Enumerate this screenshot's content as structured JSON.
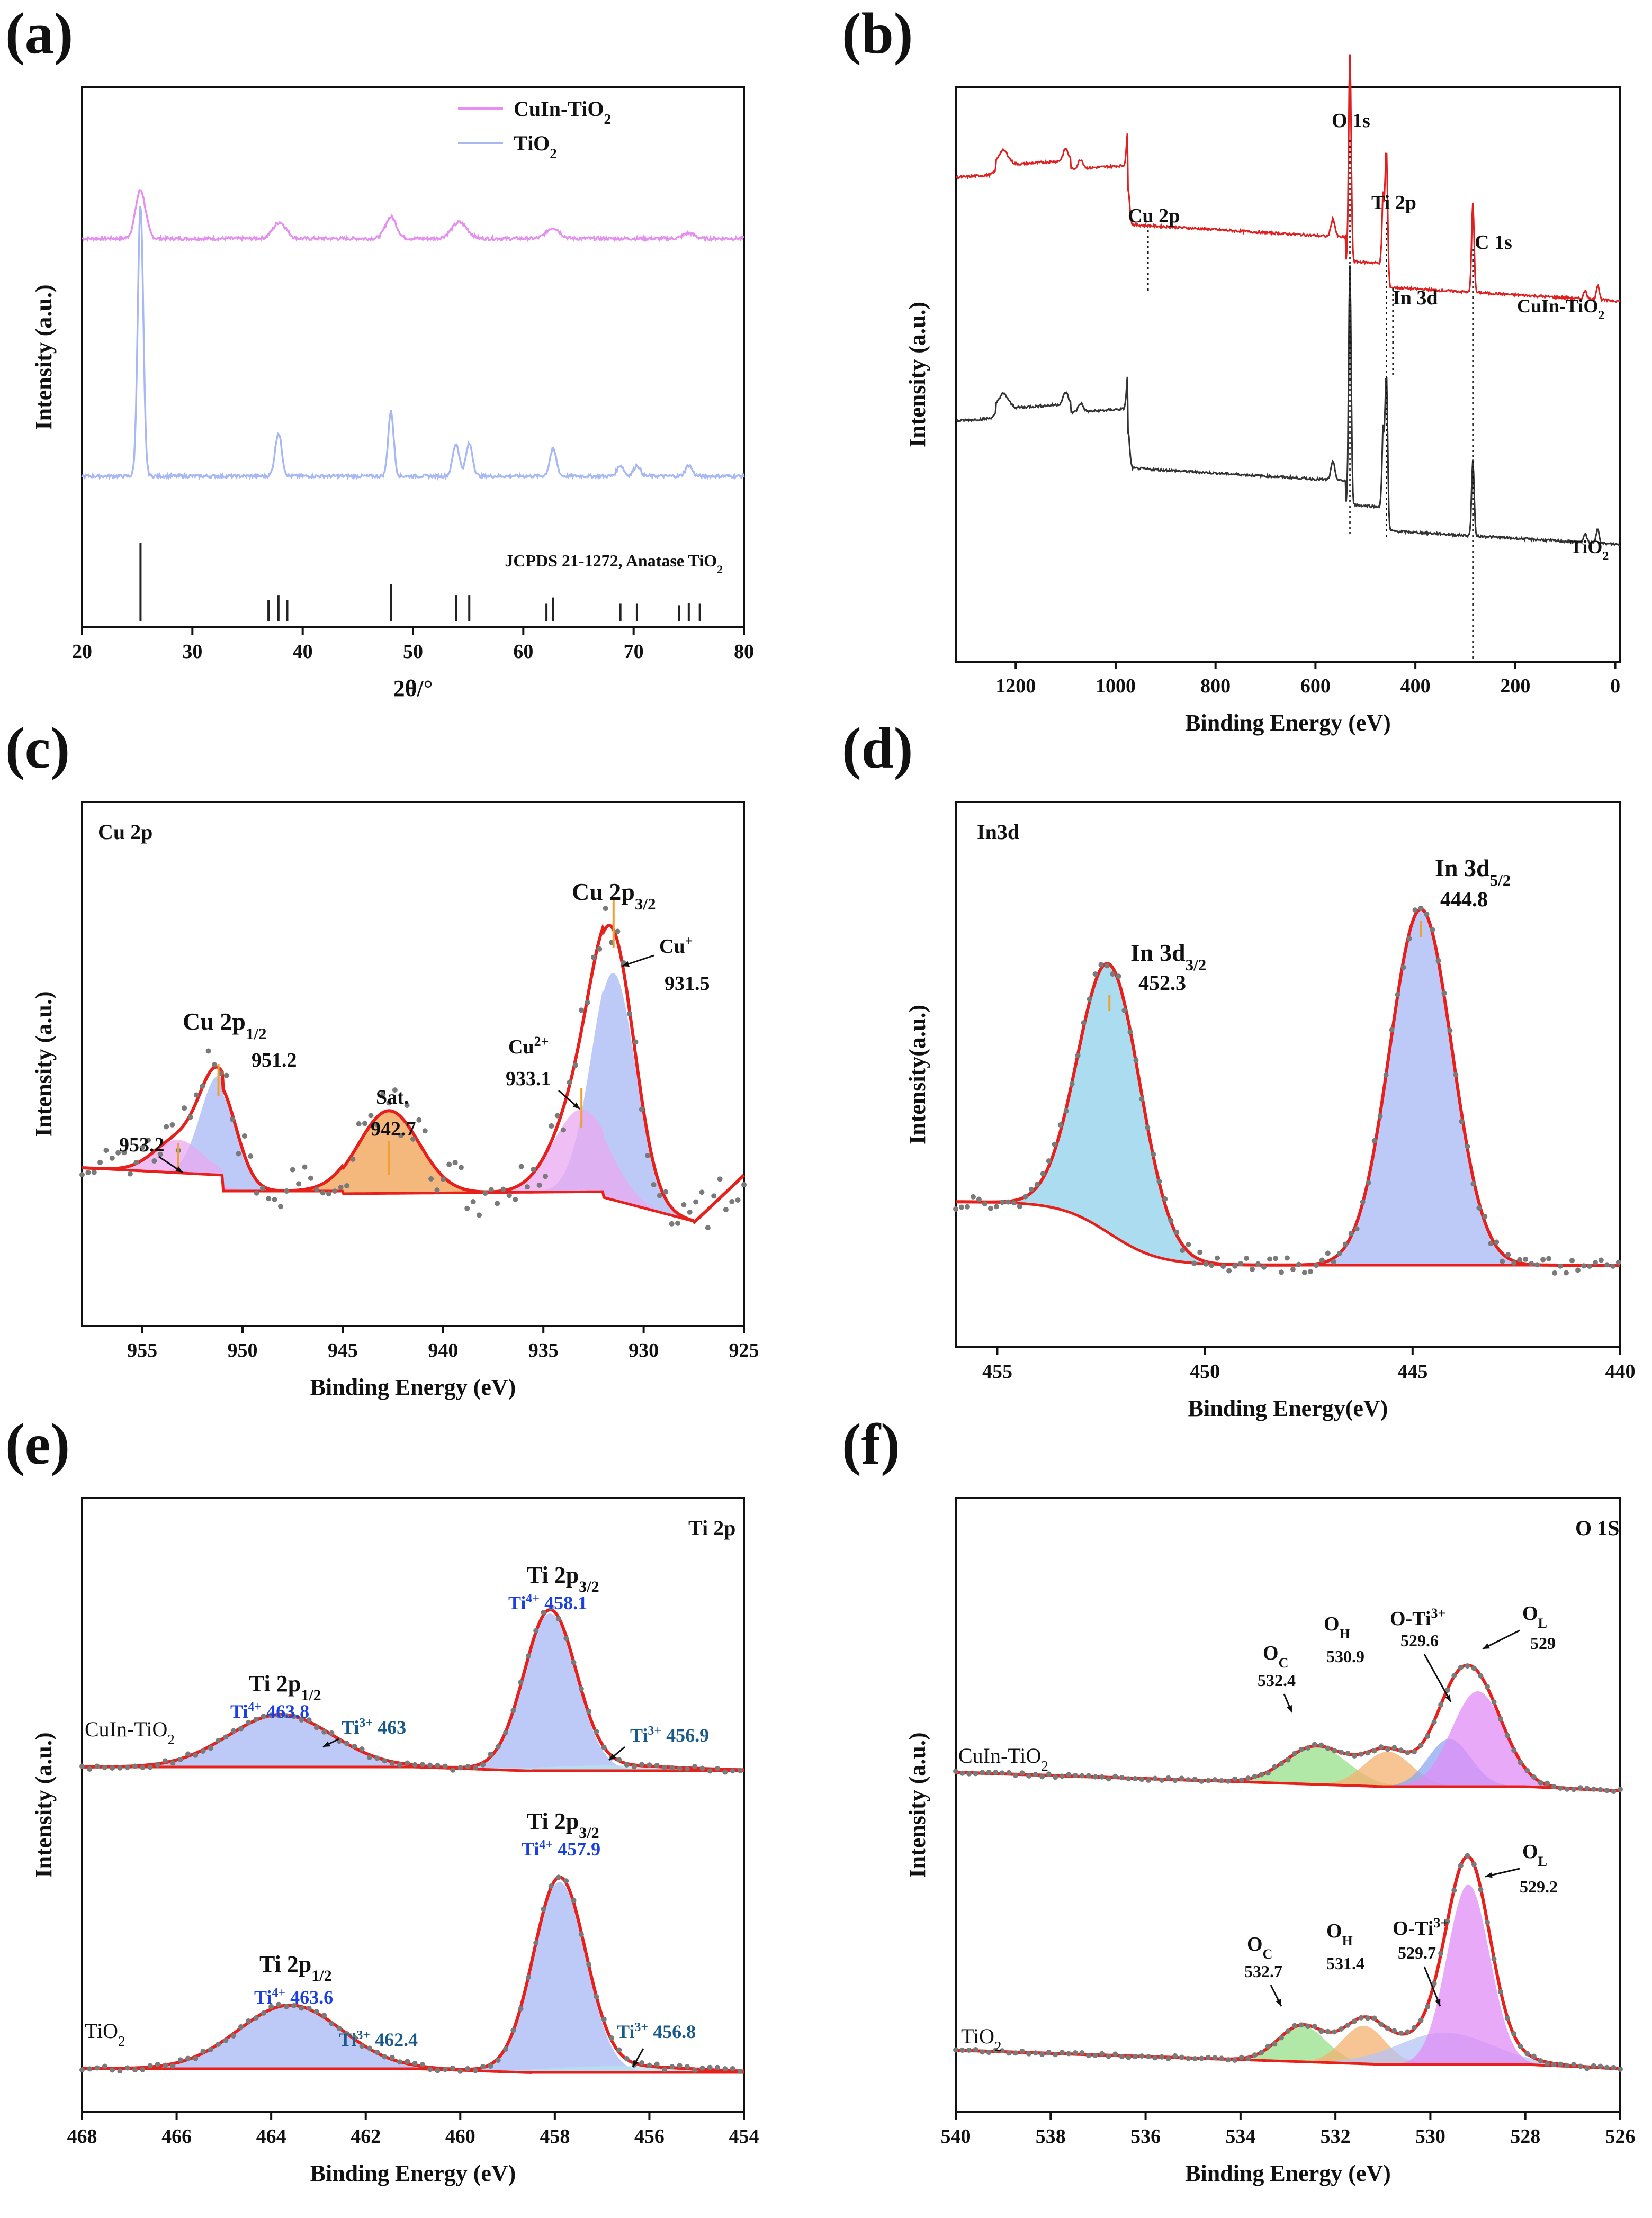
{
  "figure": {
    "colors": {
      "axis": "#111111",
      "red": "#e02020",
      "dark": "#333333",
      "pink": "#e58ff0",
      "lavender": "#a7b8f5",
      "fit": "#e8201b",
      "dots": "#7a7a7a",
      "blue_label": "#1b3fe0",
      "teal_label": "#1a5a8a"
    }
  },
  "chart_data": [
    {
      "id": "a",
      "type": "line",
      "panel_label": "(a)",
      "xlabel": "2θ/°",
      "ylabel": "Intensity (a.u.)",
      "xlim": [
        20,
        80
      ],
      "xticks": [
        20,
        30,
        40,
        50,
        60,
        70,
        80
      ],
      "legend": [
        {
          "name": "CuIn-TiO",
          "sub": "2",
          "color": "#e58ff0"
        },
        {
          "name": "TiO",
          "sub": "2",
          "color": "#a7b8f5"
        }
      ],
      "series": [
        {
          "name": "CuIn-TiO2",
          "color": "#e58ff0",
          "baseline": 0.72,
          "peaks": [
            [
              25.3,
              0.09,
              0.45
            ],
            [
              37.9,
              0.03,
              0.6
            ],
            [
              48.0,
              0.04,
              0.5
            ],
            [
              54.2,
              0.03,
              0.7
            ],
            [
              62.7,
              0.02,
              0.6
            ],
            [
              75.0,
              0.01,
              0.5
            ]
          ]
        },
        {
          "name": "TiO2",
          "color": "#a7b8f5",
          "baseline": 0.28,
          "peaks": [
            [
              25.3,
              0.5,
              0.25
            ],
            [
              37.8,
              0.08,
              0.3
            ],
            [
              48.0,
              0.12,
              0.25
            ],
            [
              53.9,
              0.06,
              0.3
            ],
            [
              55.1,
              0.06,
              0.3
            ],
            [
              62.7,
              0.05,
              0.3
            ],
            [
              68.8,
              0.02,
              0.3
            ],
            [
              70.3,
              0.02,
              0.3
            ],
            [
              75.0,
              0.02,
              0.3
            ]
          ]
        }
      ],
      "reference": {
        "label": "JCPDS 21-1272, Anatase TiO",
        "sub": "2",
        "sticks": [
          [
            25.3,
            1.0
          ],
          [
            36.9,
            0.27
          ],
          [
            37.8,
            0.33
          ],
          [
            38.6,
            0.27
          ],
          [
            48.0,
            0.47
          ],
          [
            53.9,
            0.33
          ],
          [
            55.1,
            0.33
          ],
          [
            62.1,
            0.22
          ],
          [
            62.7,
            0.3
          ],
          [
            68.8,
            0.22
          ],
          [
            70.3,
            0.22
          ],
          [
            74.1,
            0.2
          ],
          [
            75.0,
            0.23
          ],
          [
            76.0,
            0.22
          ]
        ]
      }
    },
    {
      "id": "b",
      "type": "line",
      "panel_label": "(b)",
      "xlabel": "Binding Energy (eV)",
      "ylabel": "Intensity (a.u.)",
      "xlim": [
        1320,
        -10
      ],
      "xticks": [
        1200,
        1000,
        800,
        600,
        400,
        200,
        0
      ],
      "annotations": [
        {
          "text": "O 1s",
          "x": 531
        },
        {
          "text": "Ti 2p",
          "x": 458
        },
        {
          "text": "C 1s",
          "x": 285
        },
        {
          "text": "Cu 2p",
          "x": 935
        },
        {
          "text": "In 3d",
          "x": 445
        }
      ],
      "series": [
        {
          "name": "CuIn-TiO",
          "sub": "2",
          "color": "#e02020"
        },
        {
          "name": "TiO",
          "sub": "2",
          "color": "#333333"
        }
      ]
    },
    {
      "id": "c",
      "type": "area",
      "panel_label": "(c)",
      "title": "Cu 2p",
      "xlabel": "Binding Energy (eV)",
      "ylabel": "Intensity (a.u.)",
      "xlim": [
        958,
        925
      ],
      "xticks": [
        955,
        950,
        945,
        940,
        935,
        930,
        925
      ],
      "peaks": [
        {
          "name": "Cu+ 931.5",
          "center": 931.5,
          "height": 0.55,
          "sigma": 1.1,
          "color": "#a7b8f5"
        },
        {
          "name": "Cu2+ 933.1",
          "center": 933.1,
          "height": 0.2,
          "sigma": 1.4,
          "color": "#e9a8f0"
        },
        {
          "name": "Sat. 942.7",
          "center": 942.7,
          "height": 0.2,
          "sigma": 1.5,
          "color": "#f0a050"
        },
        {
          "name": "951.2",
          "center": 951.2,
          "height": 0.24,
          "sigma": 0.9,
          "color": "#a7b8f5"
        },
        {
          "name": "953.2",
          "center": 953.2,
          "height": 0.08,
          "sigma": 1.2,
          "color": "#e9a8f0"
        }
      ],
      "labels": {
        "cu2p32": "Cu 2p",
        "cu2p32_sub": "3/2",
        "cu2p12": "Cu 2p",
        "cu2p12_sub": "1/2",
        "cuplus": "Cu",
        "cuplus_sup": "+",
        "v9315": "931.5",
        "cu2plus": "Cu",
        "cu2plus_sup": "2+",
        "v9331": "933.1",
        "sat": "Sat.",
        "v9427": "942.7",
        "v9512": "951.2",
        "v9532": "953.2"
      }
    },
    {
      "id": "d",
      "type": "area",
      "panel_label": "(d)",
      "title": "In3d",
      "xlabel": "Binding Energy(eV)",
      "ylabel": "Intensity(a.u.)",
      "xlim": [
        456,
        440
      ],
      "xticks": [
        455,
        450,
        445,
        440
      ],
      "peaks": [
        {
          "name": "In 3d3/2 452.3",
          "center": 452.3,
          "height": 0.62,
          "sigma": 0.75,
          "color": "#8fd0ea"
        },
        {
          "name": "In 3d5/2 444.8",
          "center": 444.8,
          "height": 0.82,
          "sigma": 0.75,
          "color": "#a7b8f5"
        }
      ],
      "labels": {
        "in32": "In 3d",
        "in32_sub": "3/2",
        "v4523": "452.3",
        "in52": "In 3d",
        "in52_sub": "5/2",
        "v4448": "444.8"
      }
    },
    {
      "id": "e",
      "type": "area",
      "panel_label": "(e)",
      "title": "Ti 2p",
      "xlabel": "Binding Energy (eV)",
      "ylabel": "Intensity (a.u.)",
      "xlim": [
        468,
        454
      ],
      "xticks": [
        468,
        466,
        464,
        462,
        460,
        458,
        456,
        454
      ],
      "series": [
        {
          "name": "CuIn-TiO2",
          "peaks": [
            [
              458.1,
              0.9
            ],
            [
              463.8,
              0.3
            ],
            [
              463.0,
              0.02
            ],
            [
              456.9,
              0.02
            ]
          ]
        },
        {
          "name": "TiO2",
          "peaks": [
            [
              457.9,
              0.9
            ],
            [
              463.6,
              0.3
            ],
            [
              462.4,
              0.02
            ],
            [
              456.8,
              0.02
            ]
          ]
        }
      ],
      "labels": {
        "cuin": "CuIn-TiO",
        "cuin_sub": "2",
        "tio2": "TiO",
        "tio2_sub": "2",
        "ti2p32": "Ti 2p",
        "s32": "3/2",
        "ti2p12": "Ti 2p",
        "s12": "1/2",
        "ti4": "Ti",
        "sup4": "4+",
        "ti3": "Ti",
        "sup3": "3+",
        "v4581": "458.1",
        "v4638": "463.8",
        "v463": "463",
        "v4569": "456.9",
        "v4579": "457.9",
        "v4636": "463.6",
        "v4624": "462.4",
        "v4568": "456.8"
      }
    },
    {
      "id": "f",
      "type": "area",
      "panel_label": "(f)",
      "title": "O 1S",
      "xlabel": "Binding Energy (eV)",
      "ylabel": "Intensity (a.u.)",
      "xlim": [
        540,
        526
      ],
      "xticks": [
        540,
        538,
        536,
        534,
        532,
        530,
        528,
        526
      ],
      "series": [
        {
          "name": "CuIn-TiO2",
          "peaks": [
            [
              529.0,
              0.6
            ],
            [
              529.6,
              0.3
            ],
            [
              530.9,
              0.22
            ],
            [
              532.4,
              0.24
            ]
          ]
        },
        {
          "name": "TiO2",
          "peaks": [
            [
              529.2,
              0.85
            ],
            [
              529.7,
              0.15
            ],
            [
              531.4,
              0.18
            ],
            [
              532.7,
              0.17
            ]
          ]
        }
      ],
      "labels": {
        "cuin": "CuIn-TiO",
        "cuin_sub": "2",
        "tio2": "TiO",
        "tio2_sub": "2",
        "oc": "O",
        "oc_sub": "C",
        "oh": "O",
        "oh_sub": "H",
        "oti": "O-Ti",
        "oti_sup": "3+",
        "ol": "O",
        "ol_sub": "L",
        "v5324": "532.4",
        "v5309": "530.9",
        "v5296": "529.6",
        "v529": "529",
        "v5327": "532.7",
        "v5314": "531.4",
        "v5297": "529.7",
        "v5292": "529.2"
      }
    }
  ]
}
